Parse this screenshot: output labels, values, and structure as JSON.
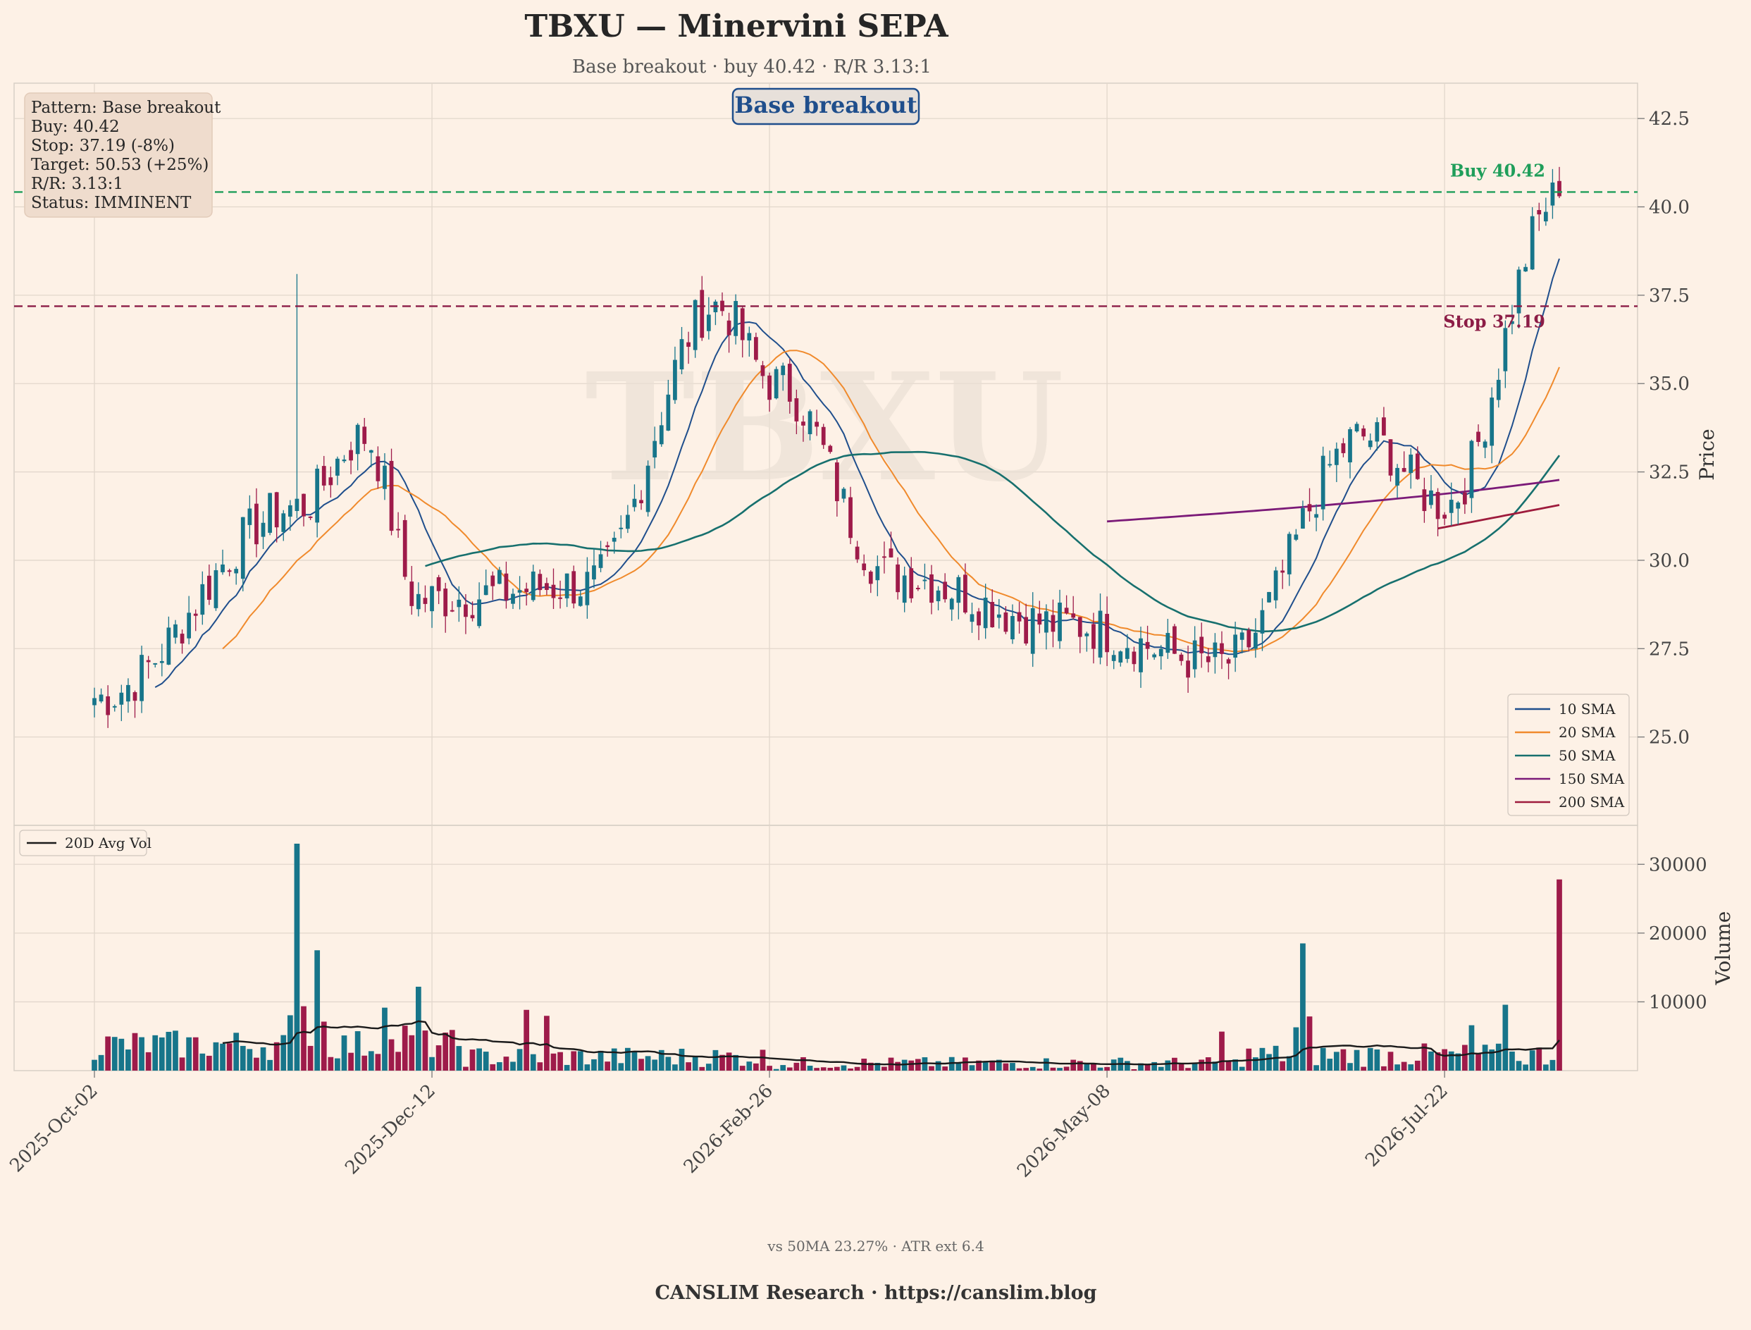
{
  "title": "TBXU — Minervini SEPA",
  "subtitle": "Base breakout · buy 40.42 · R/R 3.13:1",
  "watermark": "TBXU",
  "pattern_badge": "Base breakout",
  "info_box": [
    "Pattern: Base breakout",
    "Buy: 40.42",
    "Stop: 37.19 (-8%)",
    "Target: 50.53 (+25%)",
    "R/R: 3.13:1",
    "Status: IMMINENT"
  ],
  "buy_label": "Buy 40.42",
  "stop_label": "Stop 37.19",
  "footer_note": "vs 50MA 23.27% · ATR ext 6.4",
  "footer_brand": "CANSLIM Research  ·  https://canslim.blog",
  "colors": {
    "background": "#fdf1e6",
    "up": "#17758a",
    "down": "#9e1b4a",
    "buy": "#1f9e5a",
    "stop": "#8c1c46",
    "sma10": "#1f4e8c",
    "sma20": "#f08a2c",
    "sma50": "#17706e",
    "sma150": "#7b1a78",
    "sma200": "#9e1b3c",
    "avg_vol": "#1a1a1a"
  },
  "chart_data": [
    {
      "type": "candlestick",
      "title": "TBXU — Minervini SEPA",
      "ylabel": "Price",
      "ylim": [
        22.5,
        43.5
      ],
      "yticks": [
        "25.0",
        "27.5",
        "30.0",
        "32.5",
        "35.0",
        "37.5",
        "40.0",
        "42.5"
      ],
      "x_dates": [
        "2025-Oct-02",
        "2025-Dec-12",
        "2026-Feb-26",
        "2026-May-08",
        "2026-Jul-22"
      ],
      "x_tick_index": [
        0,
        50,
        100,
        150,
        200
      ],
      "grid": true,
      "levels": [
        {
          "name": "Buy",
          "value": 40.42
        },
        {
          "name": "Stop",
          "value": 37.19
        }
      ],
      "key_points": [
        {
          "index": 0,
          "close": 26.1
        },
        {
          "index": 30,
          "high": 38.1,
          "close": 31.5
        },
        {
          "index": 40,
          "close": 33.5
        },
        {
          "index": 48,
          "close": 28.9
        },
        {
          "index": 73,
          "close": 29.3
        },
        {
          "index": 92,
          "close": 37.2
        },
        {
          "index": 101,
          "close": 35.0
        },
        {
          "index": 118,
          "close": 29.6
        },
        {
          "index": 143,
          "close": 28.2
        },
        {
          "index": 167,
          "close": 27.1
        },
        {
          "index": 188,
          "close": 33.5
        },
        {
          "index": 200,
          "close": 31.6
        },
        {
          "index": 217,
          "close": 40.3
        }
      ],
      "series": [
        {
          "name": "10 SMA"
        },
        {
          "name": "20 SMA"
        },
        {
          "name": "50 SMA"
        },
        {
          "name": "150 SMA"
        },
        {
          "name": "200 SMA"
        }
      ],
      "legend": "lower-right"
    },
    {
      "type": "bar",
      "ylabel": "Volume",
      "ylim": [
        0,
        33000
      ],
      "yticks": [
        "10000",
        "20000",
        "30000"
      ],
      "series": [
        {
          "name": "20D Avg Vol"
        }
      ],
      "key_volumes": [
        {
          "index": 30,
          "value": 33000
        },
        {
          "index": 33,
          "value": 17500
        },
        {
          "index": 48,
          "value": 12200
        },
        {
          "index": 179,
          "value": 18500
        },
        {
          "index": 217,
          "value": 27800
        }
      ],
      "legend": "upper-left"
    }
  ]
}
